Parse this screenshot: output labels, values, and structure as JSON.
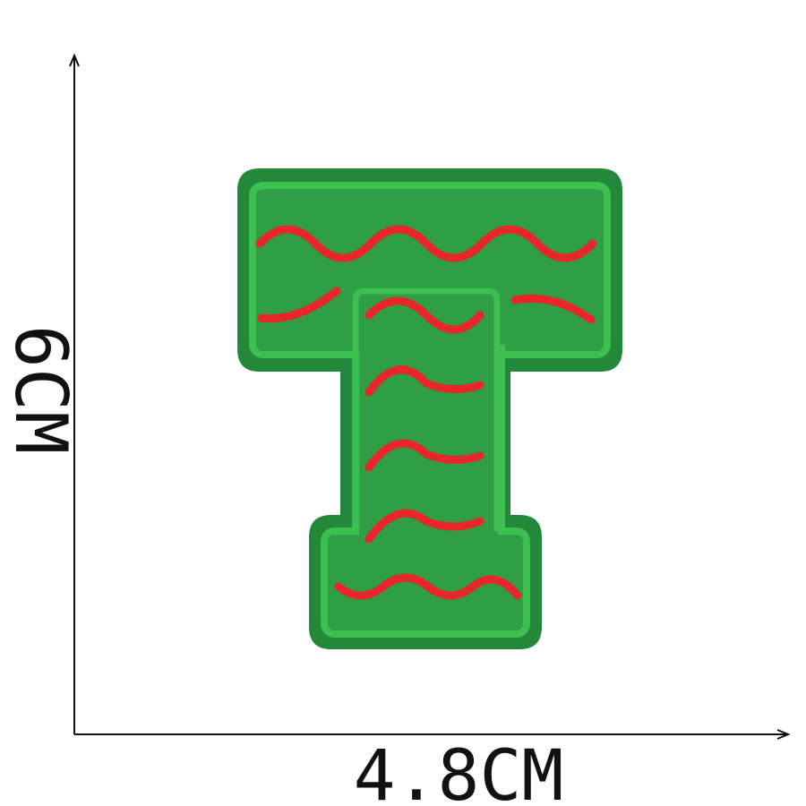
{
  "height_label": "6CM",
  "width_label": "4.8CM"
}
